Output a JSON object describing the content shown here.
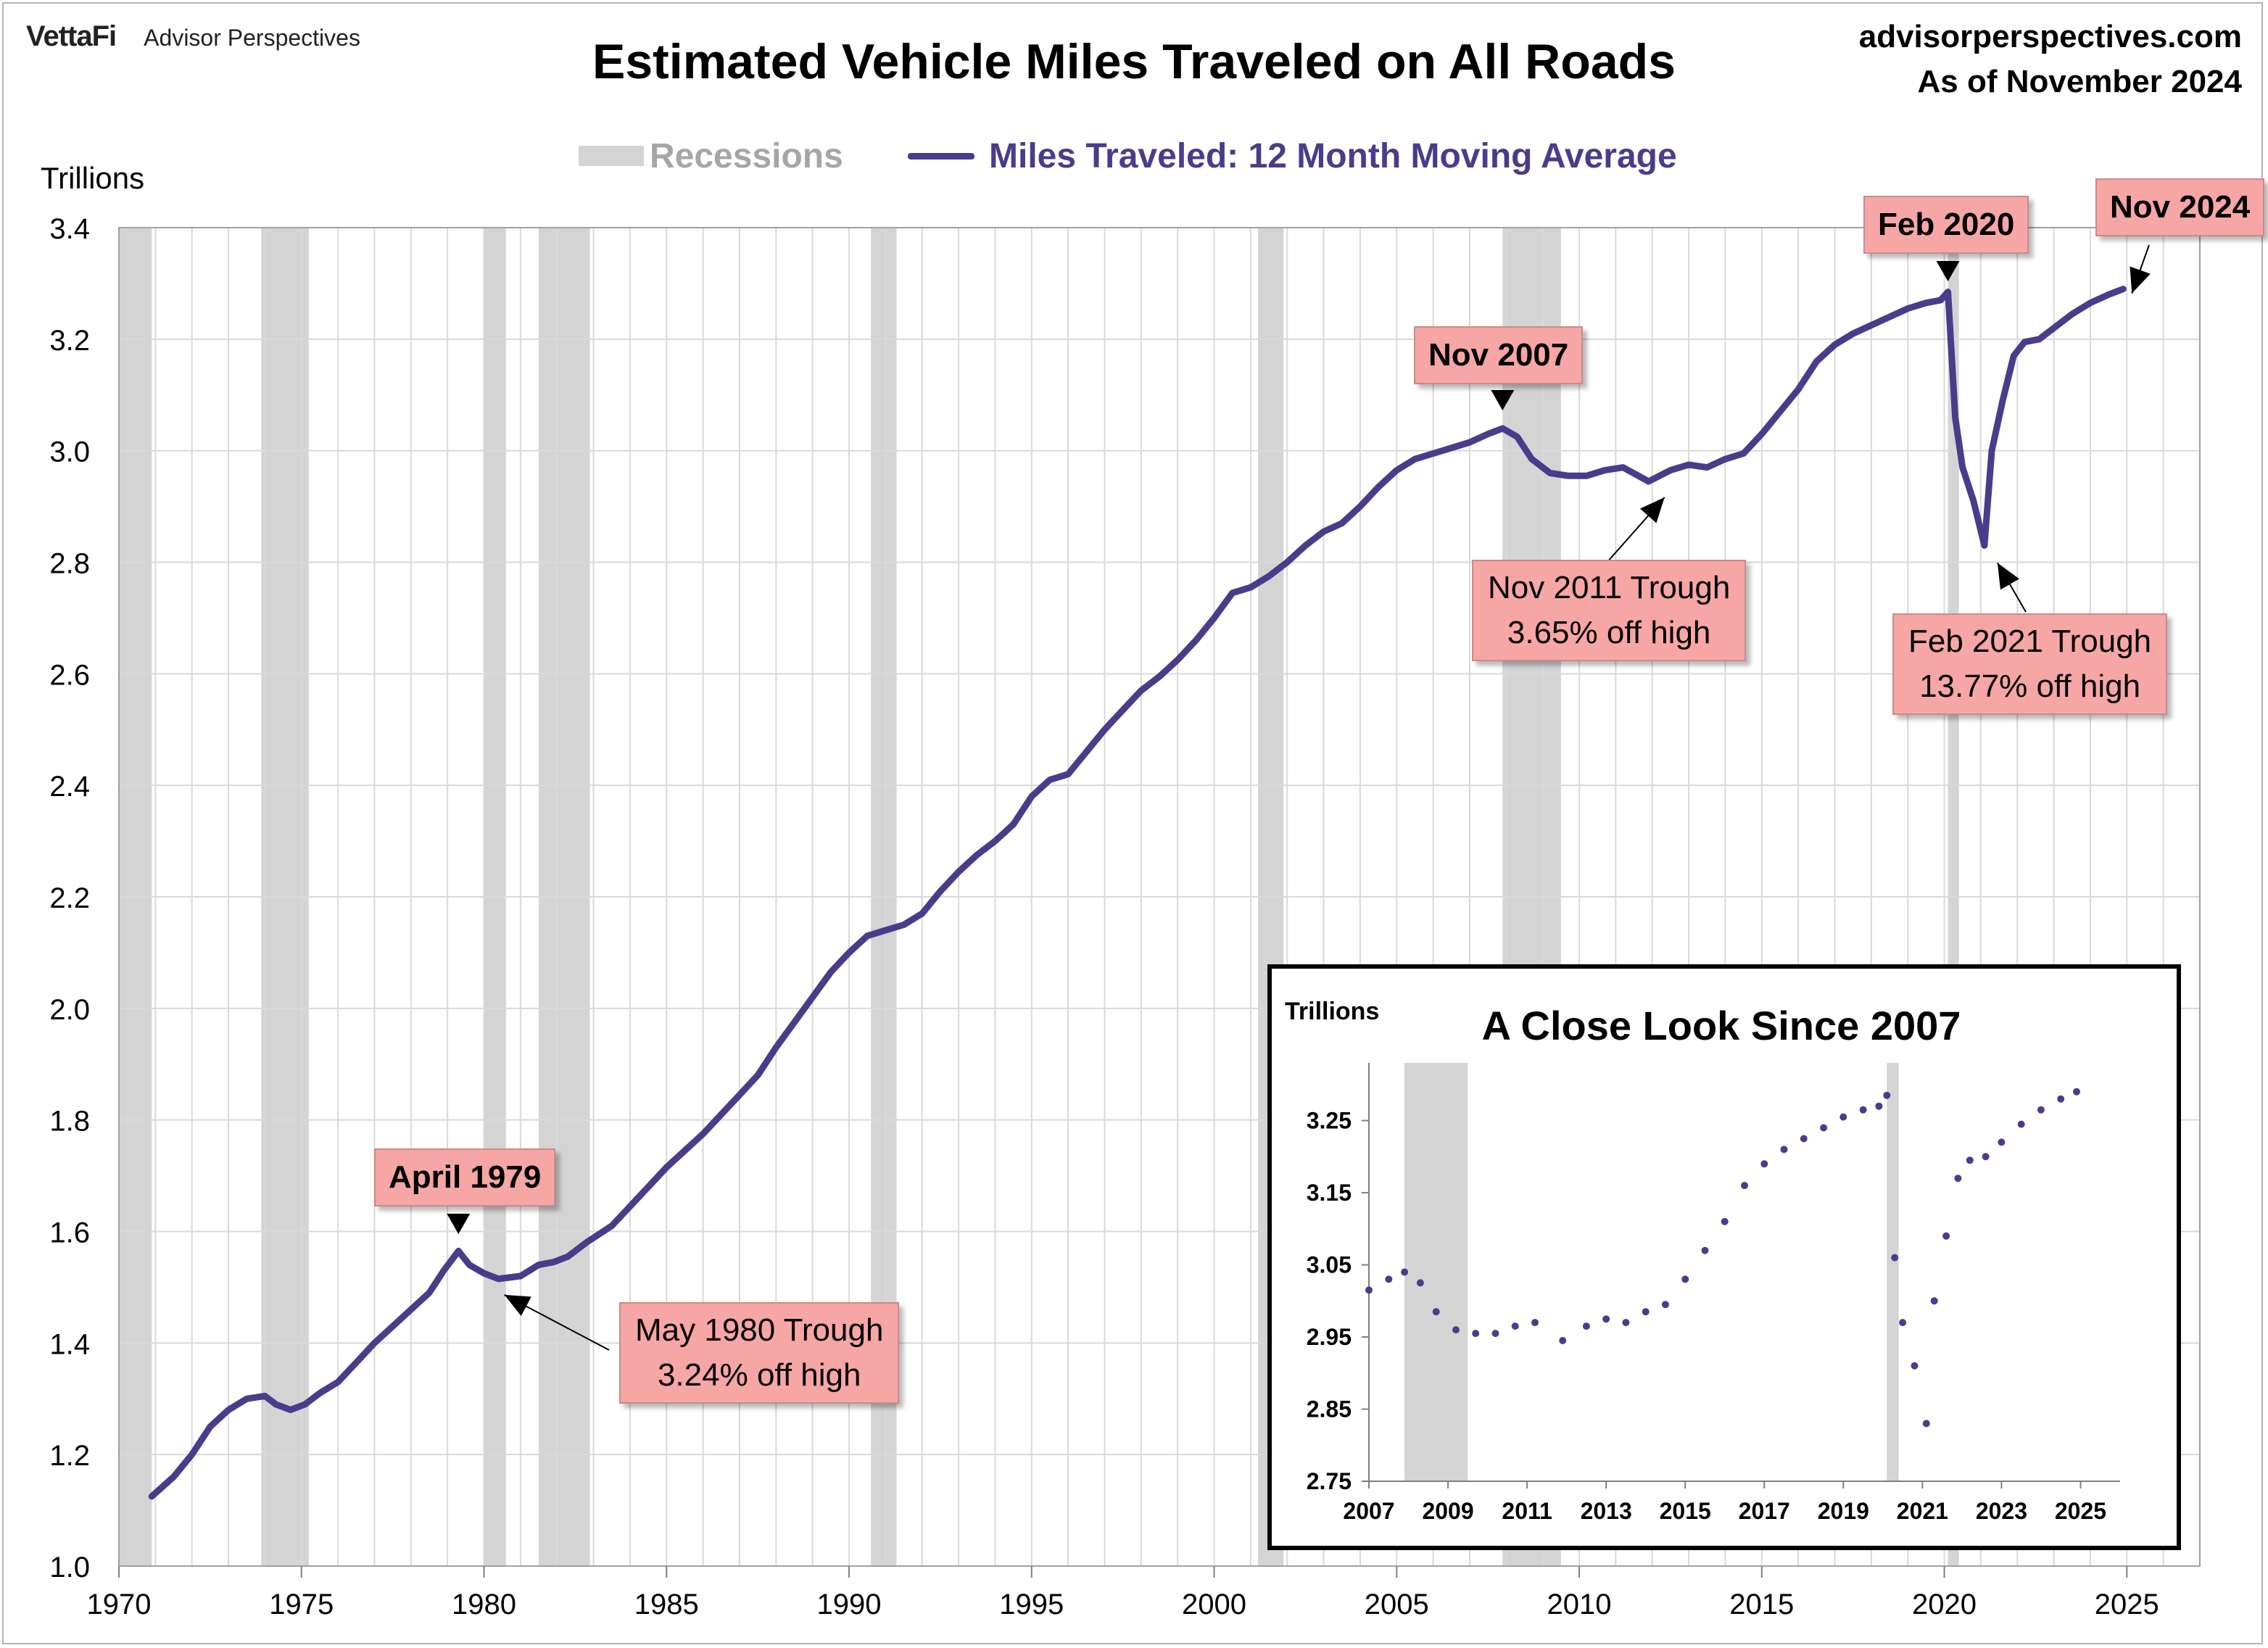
{
  "header": {
    "brand_mark": "VettaFi",
    "brand_name": "Advisor Perspectives",
    "title": "Estimated Vehicle Miles Traveled on All Roads",
    "site": "advisorperspectives.com",
    "as_of": "As of November 2024"
  },
  "legend": {
    "recessions": "Recessions",
    "series": "Miles Traveled: 12 Month Moving Average"
  },
  "colors": {
    "series": "#483d8b",
    "recession": "#d4d4d4",
    "callout": "#f7a6a6",
    "grid": "#d9d9d9"
  },
  "callouts": {
    "apr1979": "April 1979",
    "may1980": [
      "May 1980 Trough",
      "3.24% off high"
    ],
    "nov2007": "Nov 2007",
    "nov2011": [
      "Nov 2011 Trough",
      "3.65% off high"
    ],
    "feb2020": "Feb 2020",
    "feb2021": [
      "Feb 2021 Trough",
      "13.77% off high"
    ],
    "nov2024": "Nov 2024"
  },
  "chart_data": [
    {
      "type": "line",
      "title": "Estimated Vehicle Miles Traveled on All Roads",
      "ylabel": "Trillions",
      "xlim": [
        1970,
        2027
      ],
      "ylim": [
        1.0,
        3.4
      ],
      "x_ticks": [
        1970,
        1975,
        1980,
        1985,
        1990,
        1995,
        2000,
        2005,
        2010,
        2015,
        2020,
        2025
      ],
      "y_ticks": [
        "1.0",
        "1.2",
        "1.4",
        "1.6",
        "1.8",
        "2.0",
        "2.2",
        "2.4",
        "2.6",
        "2.8",
        "3.0",
        "3.2",
        "3.4"
      ],
      "grid": true,
      "legend_position": "top",
      "recessions": [
        [
          1970.0,
          1970.9
        ],
        [
          1973.9,
          1975.2
        ],
        [
          1980.0,
          1980.6
        ],
        [
          1981.5,
          1982.9
        ],
        [
          1990.6,
          1991.3
        ],
        [
          2001.2,
          2001.9
        ],
        [
          2007.9,
          2009.5
        ],
        [
          2020.1,
          2020.4
        ]
      ],
      "series": [
        {
          "name": "Miles Traveled: 12 Month Moving Average",
          "x": [
            1970.9,
            1971.5,
            1972.0,
            1972.5,
            1973.0,
            1973.5,
            1974.0,
            1974.3,
            1974.7,
            1975.1,
            1975.5,
            1976.0,
            1976.5,
            1977.0,
            1977.5,
            1978.0,
            1978.5,
            1978.9,
            1979.3,
            1979.6,
            1980.0,
            1980.4,
            1981.0,
            1981.5,
            1981.9,
            1982.3,
            1982.8,
            1983.5,
            1984.0,
            1984.5,
            1985.0,
            1985.5,
            1986.0,
            1986.5,
            1987.0,
            1987.5,
            1988.0,
            1988.5,
            1989.0,
            1989.5,
            1990.0,
            1990.5,
            1991.0,
            1991.5,
            1992.0,
            1992.5,
            1993.0,
            1993.5,
            1994.0,
            1994.5,
            1995.0,
            1995.5,
            1996.0,
            1996.5,
            1997.0,
            1997.5,
            1998.0,
            1998.5,
            1999.0,
            1999.5,
            2000.0,
            2000.5,
            2001.0,
            2001.5,
            2002.0,
            2002.5,
            2003.0,
            2003.5,
            2004.0,
            2004.5,
            2005.0,
            2005.5,
            2006.0,
            2006.5,
            2007.0,
            2007.5,
            2007.9,
            2008.3,
            2008.7,
            2009.2,
            2009.7,
            2010.2,
            2010.7,
            2011.2,
            2011.9,
            2012.5,
            2013.0,
            2013.5,
            2014.0,
            2014.5,
            2015.0,
            2015.5,
            2016.0,
            2016.5,
            2017.0,
            2017.5,
            2018.0,
            2018.5,
            2019.0,
            2019.5,
            2019.9,
            2020.1,
            2020.3,
            2020.5,
            2020.8,
            2021.1,
            2021.3,
            2021.6,
            2021.9,
            2022.2,
            2022.6,
            2023.0,
            2023.5,
            2024.0,
            2024.5,
            2024.9
          ],
          "y": [
            1.125,
            1.16,
            1.2,
            1.25,
            1.28,
            1.3,
            1.305,
            1.29,
            1.28,
            1.29,
            1.31,
            1.33,
            1.365,
            1.4,
            1.43,
            1.46,
            1.49,
            1.53,
            1.565,
            1.54,
            1.525,
            1.515,
            1.52,
            1.54,
            1.545,
            1.555,
            1.58,
            1.61,
            1.645,
            1.68,
            1.715,
            1.745,
            1.775,
            1.81,
            1.845,
            1.88,
            1.93,
            1.975,
            2.02,
            2.065,
            2.1,
            2.13,
            2.14,
            2.15,
            2.17,
            2.21,
            2.245,
            2.275,
            2.3,
            2.33,
            2.38,
            2.41,
            2.42,
            2.46,
            2.5,
            2.535,
            2.57,
            2.595,
            2.625,
            2.66,
            2.7,
            2.745,
            2.755,
            2.775,
            2.8,
            2.83,
            2.855,
            2.87,
            2.9,
            2.935,
            2.965,
            2.985,
            2.995,
            3.005,
            3.015,
            3.03,
            3.04,
            3.025,
            2.985,
            2.96,
            2.955,
            2.955,
            2.965,
            2.97,
            2.945,
            2.965,
            2.975,
            2.97,
            2.985,
            2.995,
            3.03,
            3.07,
            3.11,
            3.16,
            3.19,
            3.21,
            3.225,
            3.24,
            3.255,
            3.265,
            3.27,
            3.285,
            3.06,
            2.97,
            2.91,
            2.83,
            3.0,
            3.09,
            3.17,
            3.195,
            3.2,
            3.22,
            3.245,
            3.265,
            3.28,
            3.29
          ]
        }
      ],
      "annotations": [
        "April 1979",
        "May 1980 Trough 3.24% off high",
        "Nov 2007",
        "Nov 2011 Trough 3.65% off high",
        "Feb 2020",
        "Feb 2021 Trough 13.77% off high",
        "Nov 2024"
      ]
    },
    {
      "type": "scatter",
      "title": "A Close Look Since 2007",
      "ylabel": "Trillions",
      "xlim": [
        2007,
        2026
      ],
      "ylim": [
        2.75,
        3.33
      ],
      "x_ticks": [
        2007,
        2009,
        2011,
        2013,
        2015,
        2017,
        2019,
        2021,
        2023,
        2025
      ],
      "y_ticks": [
        "2.75",
        "2.85",
        "2.95",
        "3.05",
        "3.15",
        "3.25"
      ],
      "grid": false,
      "recessions": [
        [
          2007.9,
          2009.5
        ],
        [
          2020.1,
          2020.4
        ]
      ],
      "series": [
        {
          "name": "Miles Traveled: 12 Month Moving Average",
          "x": [
            2007.0,
            2007.5,
            2007.9,
            2008.3,
            2008.7,
            2009.2,
            2009.7,
            2010.2,
            2010.7,
            2011.2,
            2011.9,
            2012.5,
            2013.0,
            2013.5,
            2014.0,
            2014.5,
            2015.0,
            2015.5,
            2016.0,
            2016.5,
            2017.0,
            2017.5,
            2018.0,
            2018.5,
            2019.0,
            2019.5,
            2019.9,
            2020.1,
            2020.3,
            2020.5,
            2020.8,
            2021.1,
            2021.3,
            2021.6,
            2021.9,
            2022.2,
            2022.6,
            2023.0,
            2023.5,
            2024.0,
            2024.5,
            2024.9
          ],
          "y": [
            3.015,
            3.03,
            3.04,
            3.025,
            2.985,
            2.96,
            2.955,
            2.955,
            2.965,
            2.97,
            2.945,
            2.965,
            2.975,
            2.97,
            2.985,
            2.995,
            3.03,
            3.07,
            3.11,
            3.16,
            3.19,
            3.21,
            3.225,
            3.24,
            3.255,
            3.265,
            3.27,
            3.285,
            3.06,
            2.97,
            2.91,
            2.83,
            3.0,
            3.09,
            3.17,
            3.195,
            3.2,
            3.22,
            3.245,
            3.265,
            3.28,
            3.29
          ]
        }
      ]
    }
  ]
}
